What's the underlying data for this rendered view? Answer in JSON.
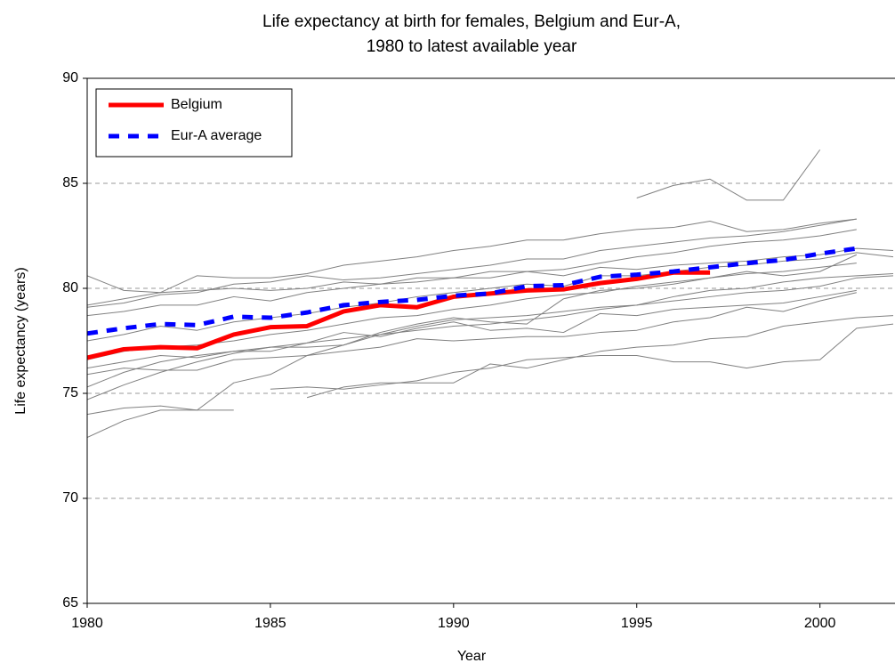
{
  "chart_data": {
    "type": "line",
    "title": [
      "Life expectancy at birth for females, Belgium and Eur-A,",
      "1980 to latest available year"
    ],
    "x_label": "Year",
    "y_label": "Life expectancy (years)",
    "x": [
      1980,
      1981,
      1982,
      1983,
      1984,
      1985,
      1986,
      1987,
      1988,
      1989,
      1990,
      1991,
      1992,
      1993,
      1994,
      1995,
      1996,
      1997,
      1998,
      1999,
      2000,
      2001,
      2002
    ],
    "xlim": [
      1980,
      2002
    ],
    "xticks": [
      1980,
      1985,
      1990,
      1995,
      2000
    ],
    "ylim": [
      65,
      90
    ],
    "yticks": [
      65,
      70,
      75,
      80,
      85,
      90
    ],
    "grid": true,
    "legend": "upper left",
    "series": [
      {
        "color": "#808080",
        "values": [
          null,
          null,
          null,
          null,
          null,
          null,
          null,
          null,
          null,
          null,
          null,
          null,
          null,
          null,
          null,
          84.3,
          84.9,
          85.2,
          84.2,
          84.2,
          86.6,
          null,
          null
        ]
      },
      {
        "color": "#808080",
        "values": [
          80.6,
          79.9,
          79.8,
          80.6,
          80.5,
          80.5,
          80.7,
          81.1,
          81.3,
          81.5,
          81.8,
          82.0,
          82.3,
          82.3,
          82.6,
          82.8,
          82.9,
          83.2,
          82.7,
          82.8,
          83.1,
          83.3,
          null
        ]
      },
      {
        "color": "#808080",
        "values": [
          79.1,
          79.3,
          79.7,
          79.8,
          80.2,
          80.3,
          80.6,
          80.4,
          80.5,
          80.7,
          80.9,
          81.1,
          81.4,
          81.4,
          81.8,
          82.0,
          82.2,
          82.4,
          82.5,
          82.7,
          83.0,
          83.3,
          null
        ]
      },
      {
        "color": "#808080",
        "values": [
          78.7,
          78.9,
          79.2,
          79.2,
          79.6,
          79.4,
          79.8,
          80.0,
          80.2,
          80.3,
          80.5,
          80.5,
          80.8,
          80.9,
          81.2,
          81.5,
          81.7,
          82.0,
          82.2,
          82.3,
          82.5,
          82.8,
          null
        ]
      },
      {
        "color": "#808080",
        "values": [
          79.2,
          79.5,
          79.8,
          79.9,
          80.0,
          79.9,
          80.0,
          80.3,
          80.2,
          80.5,
          80.5,
          80.8,
          80.8,
          80.6,
          81.0,
          80.9,
          81.1,
          81.2,
          81.3,
          81.5,
          81.6,
          81.9,
          81.8
        ]
      },
      {
        "color": "#808080",
        "values": [
          77.5,
          77.8,
          78.2,
          78.0,
          78.4,
          78.6,
          78.8,
          79.1,
          79.3,
          79.6,
          79.8,
          80.0,
          80.2,
          80.1,
          80.6,
          80.6,
          80.8,
          81.0,
          81.1,
          81.3,
          81.4,
          81.7,
          81.5
        ]
      },
      {
        "color": "#808080",
        "values": [
          76.6,
          77.0,
          77.2,
          77.3,
          77.5,
          77.8,
          78.0,
          78.3,
          78.6,
          78.7,
          79.0,
          79.2,
          79.5,
          79.7,
          79.8,
          80.1,
          80.3,
          80.5,
          80.7,
          80.8,
          81.0,
          81.2,
          null
        ]
      },
      {
        "color": "#808080",
        "values": [
          76.2,
          76.5,
          76.8,
          76.7,
          77.0,
          77.0,
          77.4,
          77.6,
          77.8,
          78.2,
          78.5,
          78.6,
          78.7,
          78.9,
          79.1,
          79.2,
          79.4,
          79.6,
          79.8,
          79.9,
          80.1,
          80.5,
          80.6
        ]
      },
      {
        "color": "#808080",
        "values": [
          75.9,
          76.2,
          76.1,
          76.1,
          76.6,
          76.7,
          76.8,
          77.3,
          77.8,
          78.0,
          78.2,
          78.3,
          78.5,
          78.7,
          79.0,
          79.2,
          79.6,
          79.9,
          80.0,
          80.3,
          80.5,
          80.6,
          80.7
        ]
      },
      {
        "color": "#808080",
        "values": [
          75.3,
          76.0,
          76.5,
          76.8,
          77.0,
          77.2,
          77.2,
          77.3,
          77.9,
          78.3,
          78.6,
          78.4,
          78.3,
          79.5,
          79.9,
          80.0,
          80.2,
          80.5,
          80.8,
          80.6,
          80.8,
          81.6,
          null
        ]
      },
      {
        "color": "#808080",
        "values": [
          74.7,
          75.4,
          76.0,
          76.5,
          76.9,
          77.2,
          77.4,
          77.9,
          77.7,
          78.1,
          78.4,
          78.0,
          78.1,
          77.9,
          78.8,
          78.7,
          79.0,
          79.1,
          79.2,
          79.3,
          79.6,
          79.9,
          null
        ]
      },
      {
        "color": "#808080",
        "values": [
          74.0,
          74.3,
          74.4,
          74.2,
          74.2,
          null,
          null,
          null,
          null,
          null,
          null,
          null,
          null,
          null,
          null,
          null,
          null,
          null,
          null,
          null,
          null,
          null,
          null
        ]
      },
      {
        "color": "#808080",
        "values": [
          72.9,
          73.7,
          74.2,
          74.2,
          75.5,
          75.9,
          76.8,
          77.0,
          77.2,
          77.6,
          77.5,
          77.6,
          77.7,
          77.7,
          77.9,
          78.0,
          78.4,
          78.6,
          79.1,
          78.9,
          79.4,
          79.8,
          null
        ]
      },
      {
        "color": "#808080",
        "values": [
          null,
          null,
          null,
          null,
          null,
          75.2,
          75.3,
          75.2,
          75.4,
          75.6,
          76.0,
          76.2,
          76.6,
          76.7,
          76.8,
          76.8,
          76.5,
          76.5,
          76.2,
          76.5,
          76.6,
          78.1,
          78.3
        ]
      },
      {
        "color": "#808080",
        "values": [
          null,
          null,
          null,
          null,
          null,
          null,
          74.8,
          75.3,
          75.5,
          75.5,
          75.5,
          76.4,
          76.2,
          76.6,
          77.0,
          77.2,
          77.3,
          77.6,
          77.7,
          78.2,
          78.4,
          78.6,
          78.7
        ]
      },
      {
        "name": "Belgium",
        "color": "#ff0000",
        "values": [
          76.7,
          77.1,
          77.2,
          77.15,
          77.8,
          78.15,
          78.2,
          78.9,
          79.2,
          79.1,
          79.6,
          79.75,
          79.9,
          79.95,
          80.25,
          80.45,
          80.75,
          80.75,
          null,
          null,
          null,
          null,
          null
        ]
      },
      {
        "name": "Eur-A average",
        "color": "#0000ff",
        "dashed": true,
        "values": [
          77.85,
          78.1,
          78.3,
          78.25,
          78.65,
          78.6,
          78.85,
          79.2,
          79.35,
          79.45,
          79.65,
          79.75,
          80.1,
          80.15,
          80.55,
          80.65,
          80.8,
          81.0,
          81.2,
          81.35,
          81.65,
          81.9,
          null
        ]
      }
    ]
  }
}
